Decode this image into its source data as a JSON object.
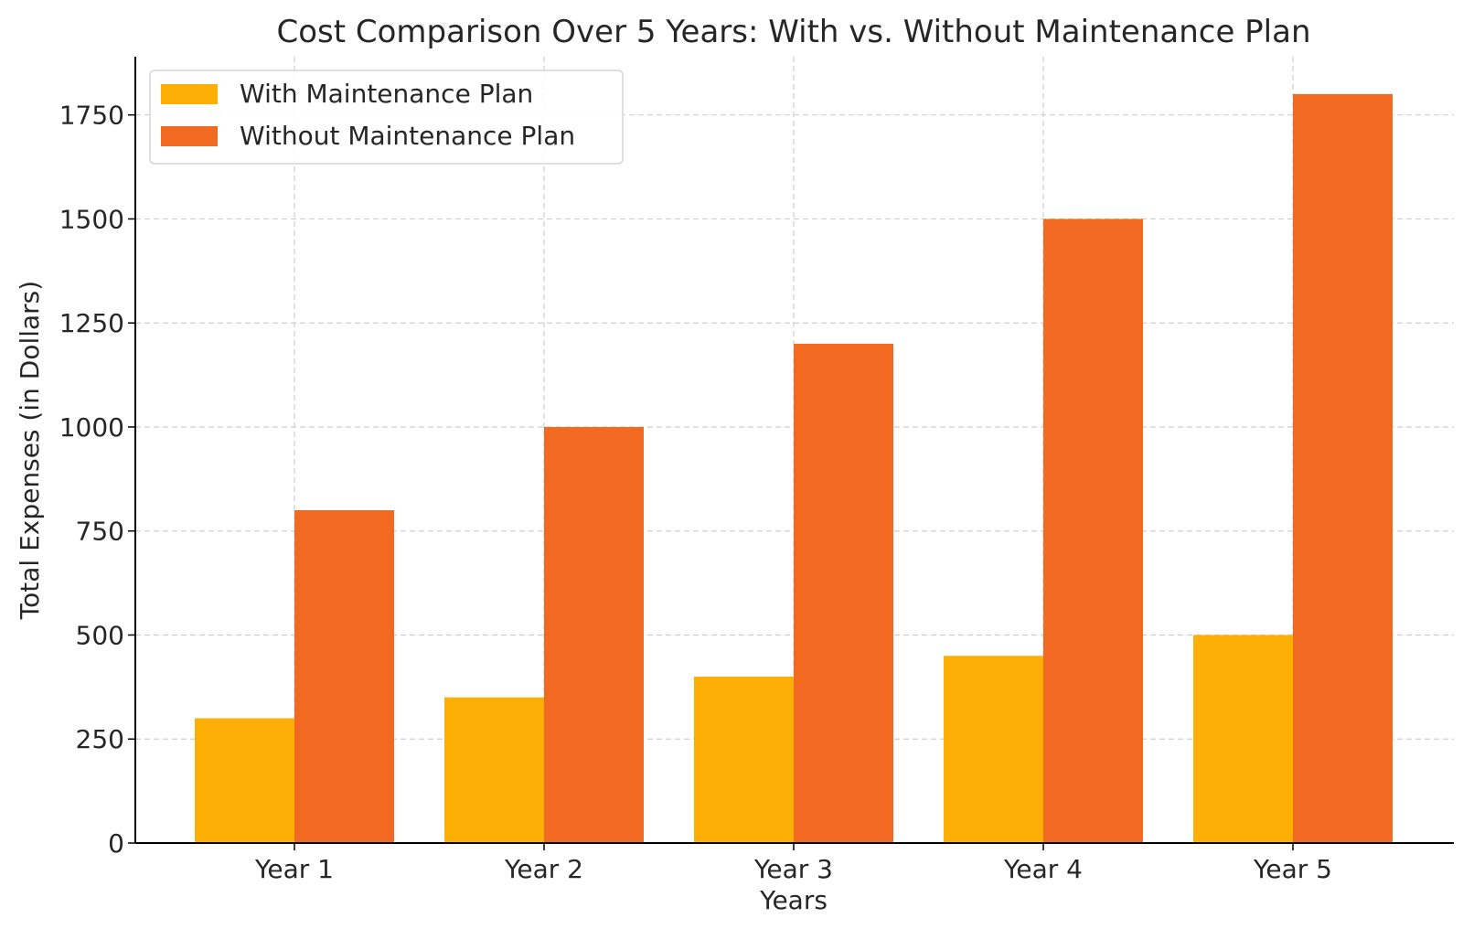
{
  "chart_data": {
    "type": "bar",
    "title": "Cost Comparison Over 5 Years: With vs. Without Maintenance Plan",
    "xlabel": "Years",
    "ylabel": "Total Expenses (in Dollars)",
    "categories": [
      "Year 1",
      "Year 2",
      "Year 3",
      "Year 4",
      "Year 5"
    ],
    "series": [
      {
        "name": "With Maintenance Plan",
        "color": "#FDAF05",
        "values": [
          300,
          350,
          400,
          450,
          500
        ]
      },
      {
        "name": "Without Maintenance Plan",
        "color": "#F26A22",
        "values": [
          800,
          1000,
          1200,
          1500,
          1800
        ]
      }
    ],
    "ylim": [
      0,
      1890
    ],
    "yticks": [
      0,
      250,
      500,
      750,
      1000,
      1250,
      1500,
      1750
    ],
    "grid": true,
    "legend_position": "top-left"
  }
}
